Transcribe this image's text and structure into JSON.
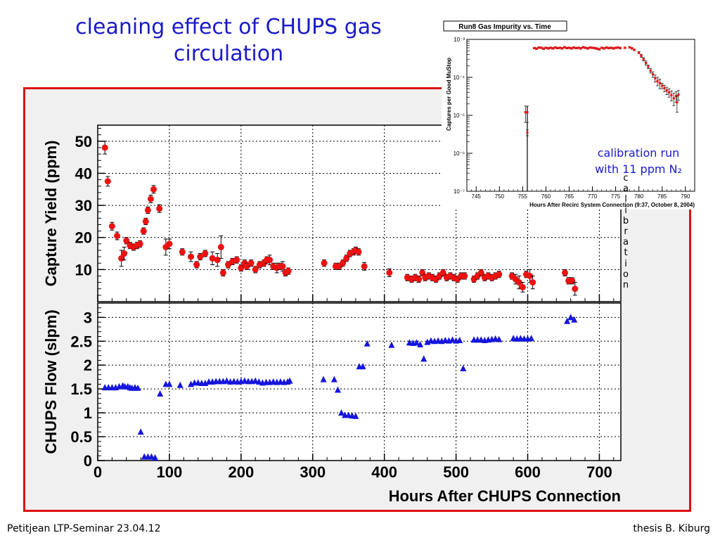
{
  "slide": {
    "title": "cleaning effect of CHUPS gas circulation",
    "footer_left": "Petitjean LTP-Seminar 23.04.12",
    "footer_right": "thesis B. Kiburg",
    "vertical_word": "calibration",
    "calibration_note_line1": "calibration run",
    "calibration_note_line2": "with 11 ppm N₂"
  },
  "chart_data": [
    {
      "type": "scatter",
      "panel": "top",
      "ylabel": "Capture Yield (ppm)",
      "ylim": [
        0,
        55
      ],
      "yticks": [
        10,
        20,
        30,
        40,
        50
      ],
      "xlim": [
        0,
        730
      ],
      "grid": true,
      "marker": "circle",
      "color": "#ee1111",
      "points": [
        [
          10,
          48,
          2
        ],
        [
          14,
          37.5,
          1.5
        ],
        [
          20,
          23.5,
          1.2
        ],
        [
          27,
          20.5,
          1.2
        ],
        [
          33,
          13.5,
          2.5
        ],
        [
          37,
          15,
          2
        ],
        [
          40,
          19,
          1
        ],
        [
          45,
          17.5,
          1
        ],
        [
          50,
          17,
          1
        ],
        [
          55,
          17.5,
          1
        ],
        [
          59,
          18,
          1
        ],
        [
          64,
          22,
          1
        ],
        [
          67,
          25,
          1
        ],
        [
          70,
          28.5,
          1
        ],
        [
          74,
          32,
          1.2
        ],
        [
          78,
          35,
          1.2
        ],
        [
          86,
          29,
          1.2
        ],
        [
          95,
          17,
          2.5
        ],
        [
          100,
          18,
          1.5
        ],
        [
          118,
          15.5,
          1
        ],
        [
          130,
          14,
          1.5
        ],
        [
          138,
          11.5,
          1
        ],
        [
          143,
          14,
          1
        ],
        [
          150,
          15,
          1
        ],
        [
          160,
          13.5,
          2
        ],
        [
          167,
          13,
          2
        ],
        [
          172,
          17,
          3.5
        ],
        [
          175,
          9,
          1
        ],
        [
          182,
          11.5,
          1
        ],
        [
          188,
          12.5,
          1
        ],
        [
          194,
          13,
          1
        ],
        [
          200,
          10.5,
          1
        ],
        [
          205,
          12,
          1
        ],
        [
          208,
          11,
          1
        ],
        [
          214,
          12,
          1
        ],
        [
          220,
          10,
          1
        ],
        [
          226,
          11.5,
          1
        ],
        [
          232,
          12,
          1
        ],
        [
          236,
          13,
          1
        ],
        [
          240,
          13,
          1.5
        ],
        [
          245,
          11,
          1
        ],
        [
          250,
          10.5,
          1.5
        ],
        [
          254,
          11,
          1
        ],
        [
          258,
          11,
          1.5
        ],
        [
          262,
          9,
          1
        ],
        [
          266,
          9.5,
          1
        ],
        [
          316,
          12,
          1
        ],
        [
          332,
          11,
          1
        ],
        [
          337,
          11,
          1
        ],
        [
          342,
          12,
          1
        ],
        [
          347,
          13.5,
          1
        ],
        [
          352,
          15,
          1
        ],
        [
          357,
          15.5,
          1
        ],
        [
          360,
          16,
          1
        ],
        [
          364,
          15.5,
          1
        ],
        [
          372,
          11,
          1.2
        ],
        [
          407,
          9,
          1.2
        ],
        [
          432,
          7.5,
          1
        ],
        [
          438,
          7,
          1
        ],
        [
          443,
          7.5,
          1
        ],
        [
          448,
          7,
          1
        ],
        [
          453,
          9,
          1
        ],
        [
          457,
          7.5,
          1
        ],
        [
          462,
          8,
          1
        ],
        [
          467,
          7.5,
          1
        ],
        [
          472,
          7,
          1
        ],
        [
          477,
          8,
          1
        ],
        [
          482,
          9,
          1
        ],
        [
          487,
          7.5,
          1
        ],
        [
          492,
          8,
          1
        ],
        [
          497,
          7.5,
          1
        ],
        [
          502,
          7,
          1
        ],
        [
          507,
          8,
          1
        ],
        [
          512,
          8,
          1
        ],
        [
          525,
          7,
          1
        ],
        [
          530,
          8,
          1
        ],
        [
          535,
          9,
          1
        ],
        [
          540,
          7.5,
          1
        ],
        [
          545,
          8,
          1
        ],
        [
          550,
          7.5,
          1
        ],
        [
          555,
          8,
          1
        ],
        [
          560,
          8.5,
          1
        ],
        [
          578,
          8,
          1
        ],
        [
          583,
          7,
          1.5
        ],
        [
          588,
          6,
          2
        ],
        [
          593,
          4.5,
          1.5
        ],
        [
          598,
          8.5,
          1
        ],
        [
          603,
          8,
          2
        ],
        [
          607,
          6,
          2
        ],
        [
          652,
          9,
          1
        ],
        [
          657,
          6.5,
          1
        ],
        [
          662,
          6.5,
          1
        ],
        [
          666,
          4,
          2
        ]
      ]
    },
    {
      "type": "scatter",
      "panel": "bottom",
      "xlabel": "Hours After CHUPS Connection",
      "ylabel": "CHUPS Flow (slpm)",
      "xlim": [
        0,
        730
      ],
      "ylim": [
        0,
        3.3
      ],
      "xticks": [
        0,
        100,
        200,
        300,
        400,
        500,
        600,
        700
      ],
      "yticks": [
        0,
        0.5,
        1,
        1.5,
        2,
        2.5,
        3
      ],
      "ytick_labels": [
        "0",
        "0.5",
        "1",
        "1.5",
        "2",
        "2.5",
        "3"
      ],
      "grid": true,
      "marker": "triangle",
      "color": "#1515dd",
      "x": [
        10,
        15,
        20,
        25,
        30,
        35,
        38,
        42,
        45,
        48,
        52,
        56,
        60,
        65,
        70,
        75,
        80,
        87,
        95,
        100,
        115,
        130,
        135,
        140,
        145,
        150,
        155,
        160,
        165,
        170,
        175,
        180,
        185,
        190,
        195,
        200,
        205,
        210,
        215,
        220,
        225,
        230,
        235,
        240,
        245,
        250,
        255,
        260,
        265,
        268,
        315,
        330,
        335,
        340,
        345,
        350,
        355,
        360,
        365,
        370,
        376,
        410,
        435,
        440,
        445,
        450,
        455,
        460,
        465,
        470,
        475,
        480,
        485,
        490,
        495,
        500,
        505,
        510,
        525,
        530,
        535,
        540,
        545,
        550,
        555,
        560,
        580,
        585,
        590,
        595,
        600,
        605,
        655,
        660,
        665
      ],
      "y": [
        1.53,
        1.53,
        1.53,
        1.53,
        1.55,
        1.57,
        1.55,
        1.55,
        1.53,
        1.52,
        1.53,
        1.52,
        0.6,
        0.08,
        0.08,
        0.08,
        0.06,
        1.4,
        1.6,
        1.6,
        1.58,
        1.6,
        1.63,
        1.63,
        1.62,
        1.62,
        1.65,
        1.65,
        1.66,
        1.66,
        1.66,
        1.67,
        1.65,
        1.66,
        1.65,
        1.66,
        1.67,
        1.66,
        1.66,
        1.67,
        1.65,
        1.63,
        1.64,
        1.64,
        1.65,
        1.64,
        1.65,
        1.64,
        1.65,
        1.67,
        1.7,
        1.7,
        1.48,
        1.0,
        0.95,
        0.95,
        0.94,
        0.93,
        1.97,
        1.97,
        2.45,
        2.42,
        2.47,
        2.46,
        2.47,
        2.43,
        2.13,
        2.48,
        2.51,
        2.5,
        2.51,
        2.5,
        2.52,
        2.51,
        2.53,
        2.51,
        2.52,
        1.93,
        2.53,
        2.53,
        2.53,
        2.52,
        2.53,
        2.54,
        2.55,
        2.54,
        2.56,
        2.55,
        2.56,
        2.55,
        2.55,
        2.56,
        2.92,
        3.0,
        2.95
      ]
    },
    {
      "type": "scatter",
      "panel": "inset",
      "title": "Run8 Gas Impurity vs. Time",
      "xlabel": "Hours After Recirc System Connection (9:37, October 8, 2004)",
      "ylabel": "Captures per Good MuStop",
      "xlim": [
        743,
        792
      ],
      "xticks": [
        745,
        750,
        755,
        760,
        765,
        770,
        775,
        780,
        785,
        790
      ],
      "yscale": "log",
      "ylim": [
        1e-07,
        0.001
      ],
      "yticks": [
        1e-07,
        1e-06,
        1e-05,
        0.0001,
        0.001
      ],
      "ytick_labels": [
        "10⁻⁷",
        "10⁻⁶",
        "10⁻⁵",
        "10⁻⁴",
        "10⁻³"
      ],
      "marker": "square",
      "color": "#ee1111",
      "points": [
        [
          755.6,
          1.2e-05,
          5.5e-06
        ],
        [
          756,
          1.2e-05,
          5.5e-06
        ],
        [
          756,
          3.5e-06,
          6e-07
        ],
        [
          757.5,
          0.00059,
          3e-05
        ],
        [
          758,
          0.00057,
          3e-05
        ],
        [
          758.5,
          0.00061,
          3e-05
        ],
        [
          759,
          0.0006,
          3e-05
        ],
        [
          759.5,
          0.00057,
          3e-05
        ],
        [
          760,
          0.0006,
          3e-05
        ],
        [
          760.5,
          0.00058,
          3e-05
        ],
        [
          761,
          0.0006,
          3e-05
        ],
        [
          761.5,
          0.00058,
          3e-05
        ],
        [
          762,
          0.00061,
          3e-05
        ],
        [
          762.5,
          0.00059,
          3e-05
        ],
        [
          763,
          0.0006,
          3e-05
        ],
        [
          763.5,
          0.00058,
          3e-05
        ],
        [
          764,
          0.00062,
          3e-05
        ],
        [
          764.5,
          0.00059,
          3e-05
        ],
        [
          765,
          0.0006,
          3e-05
        ],
        [
          765.5,
          0.00058,
          3e-05
        ],
        [
          766,
          0.00061,
          3e-05
        ],
        [
          766.5,
          0.00059,
          3e-05
        ],
        [
          767,
          0.0006,
          3e-05
        ],
        [
          767.5,
          0.00058,
          3e-05
        ],
        [
          768,
          0.00062,
          3e-05
        ],
        [
          768.5,
          0.0006,
          3e-05
        ],
        [
          769,
          0.00058,
          3e-05
        ],
        [
          769.5,
          0.00061,
          3e-05
        ],
        [
          770,
          0.0006,
          3e-05
        ],
        [
          770.5,
          0.00059,
          3e-05
        ],
        [
          771,
          0.00057,
          3e-05
        ],
        [
          771.5,
          0.00055,
          3e-05
        ],
        [
          772,
          0.0006,
          3e-05
        ],
        [
          772.5,
          0.00058,
          3e-05
        ],
        [
          773,
          0.00061,
          3e-05
        ],
        [
          773.5,
          0.00059,
          3e-05
        ],
        [
          774,
          0.0006,
          3e-05
        ],
        [
          774.5,
          0.00058,
          3e-05
        ],
        [
          775,
          0.0006,
          3e-05
        ],
        [
          775.5,
          0.00061,
          3e-05
        ],
        [
          776,
          0.00059,
          3e-05
        ],
        [
          777,
          0.0006,
          3e-05
        ],
        [
          778,
          0.00062,
          3e-05
        ],
        [
          778.5,
          0.00058,
          3e-05
        ],
        [
          779,
          0.00053,
          3e-05
        ],
        [
          780,
          0.00045,
          3e-05
        ],
        [
          780.5,
          0.00037,
          3e-05
        ],
        [
          781,
          0.0003,
          3e-05
        ],
        [
          781.5,
          0.00024,
          3e-05
        ],
        [
          782,
          0.00019,
          2e-05
        ],
        [
          782.5,
          0.00015,
          2e-05
        ],
        [
          783,
          0.00012,
          2e-05
        ],
        [
          783.5,
          9.5e-05,
          2e-05
        ],
        [
          784,
          8e-05,
          2e-05
        ],
        [
          784.5,
          7e-05,
          2e-05
        ],
        [
          785,
          6e-05,
          1e-05
        ],
        [
          785.5,
          5.2e-05,
          1e-05
        ],
        [
          786,
          4.5e-05,
          1e-05
        ],
        [
          786.5,
          4e-05,
          1e-05
        ],
        [
          787,
          3.4e-05,
          1e-05
        ],
        [
          787.5,
          2.8e-05,
          1e-05
        ],
        [
          788,
          3.2e-05,
          1e-05
        ],
        [
          788.5,
          3.5e-05,
          1e-05
        ],
        [
          788.2,
          2.2e-05,
          1e-05
        ]
      ]
    }
  ]
}
